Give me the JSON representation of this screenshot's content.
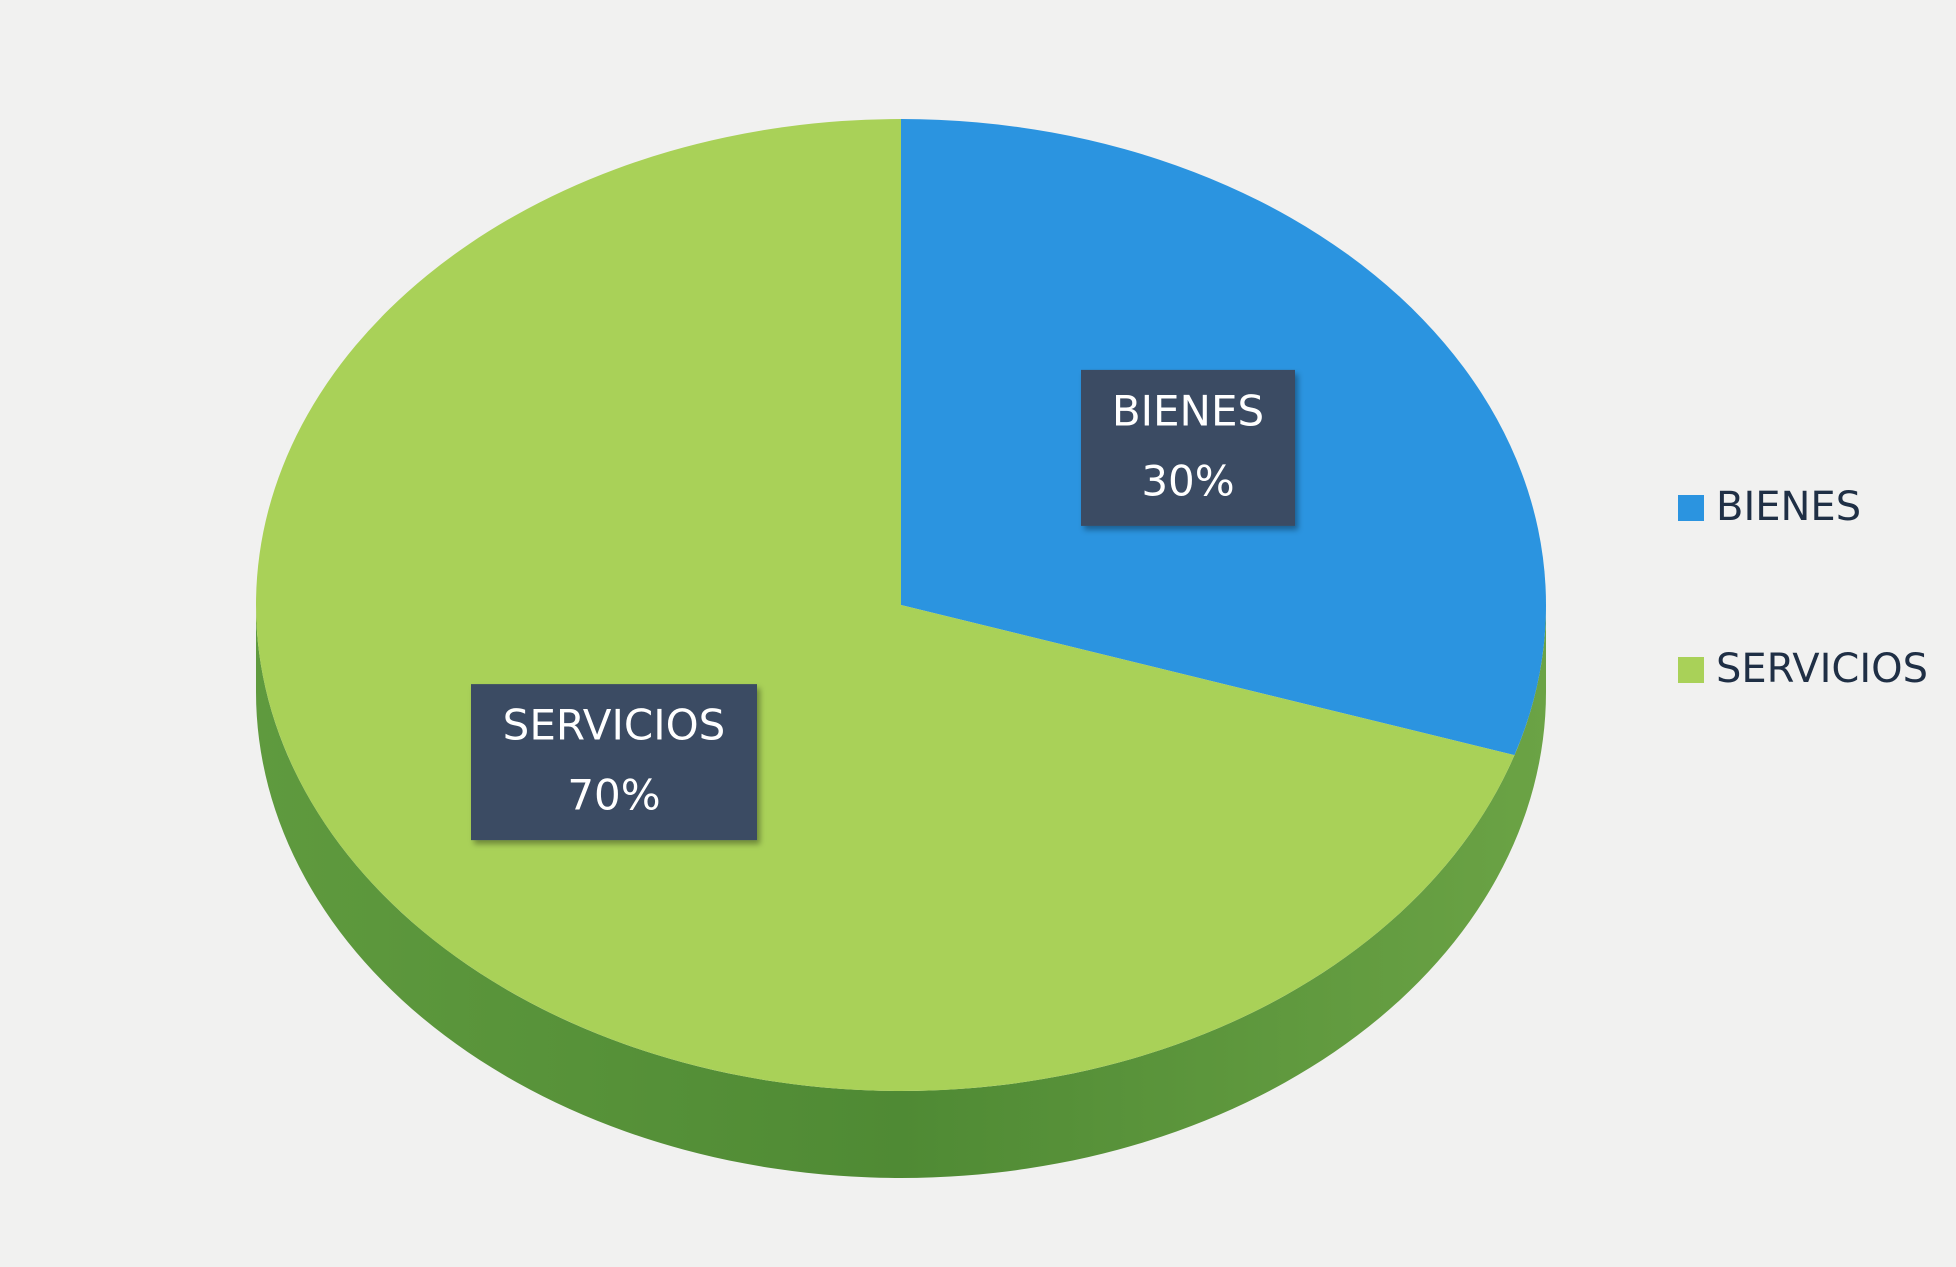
{
  "chart_data": {
    "type": "pie",
    "categories": [
      "BIENES",
      "SERVICIOS"
    ],
    "values": [
      30,
      70
    ],
    "value_labels": [
      "30%",
      "70%"
    ],
    "colors": [
      "#2b94e0",
      "#a9d158"
    ],
    "legend": "right"
  }
}
